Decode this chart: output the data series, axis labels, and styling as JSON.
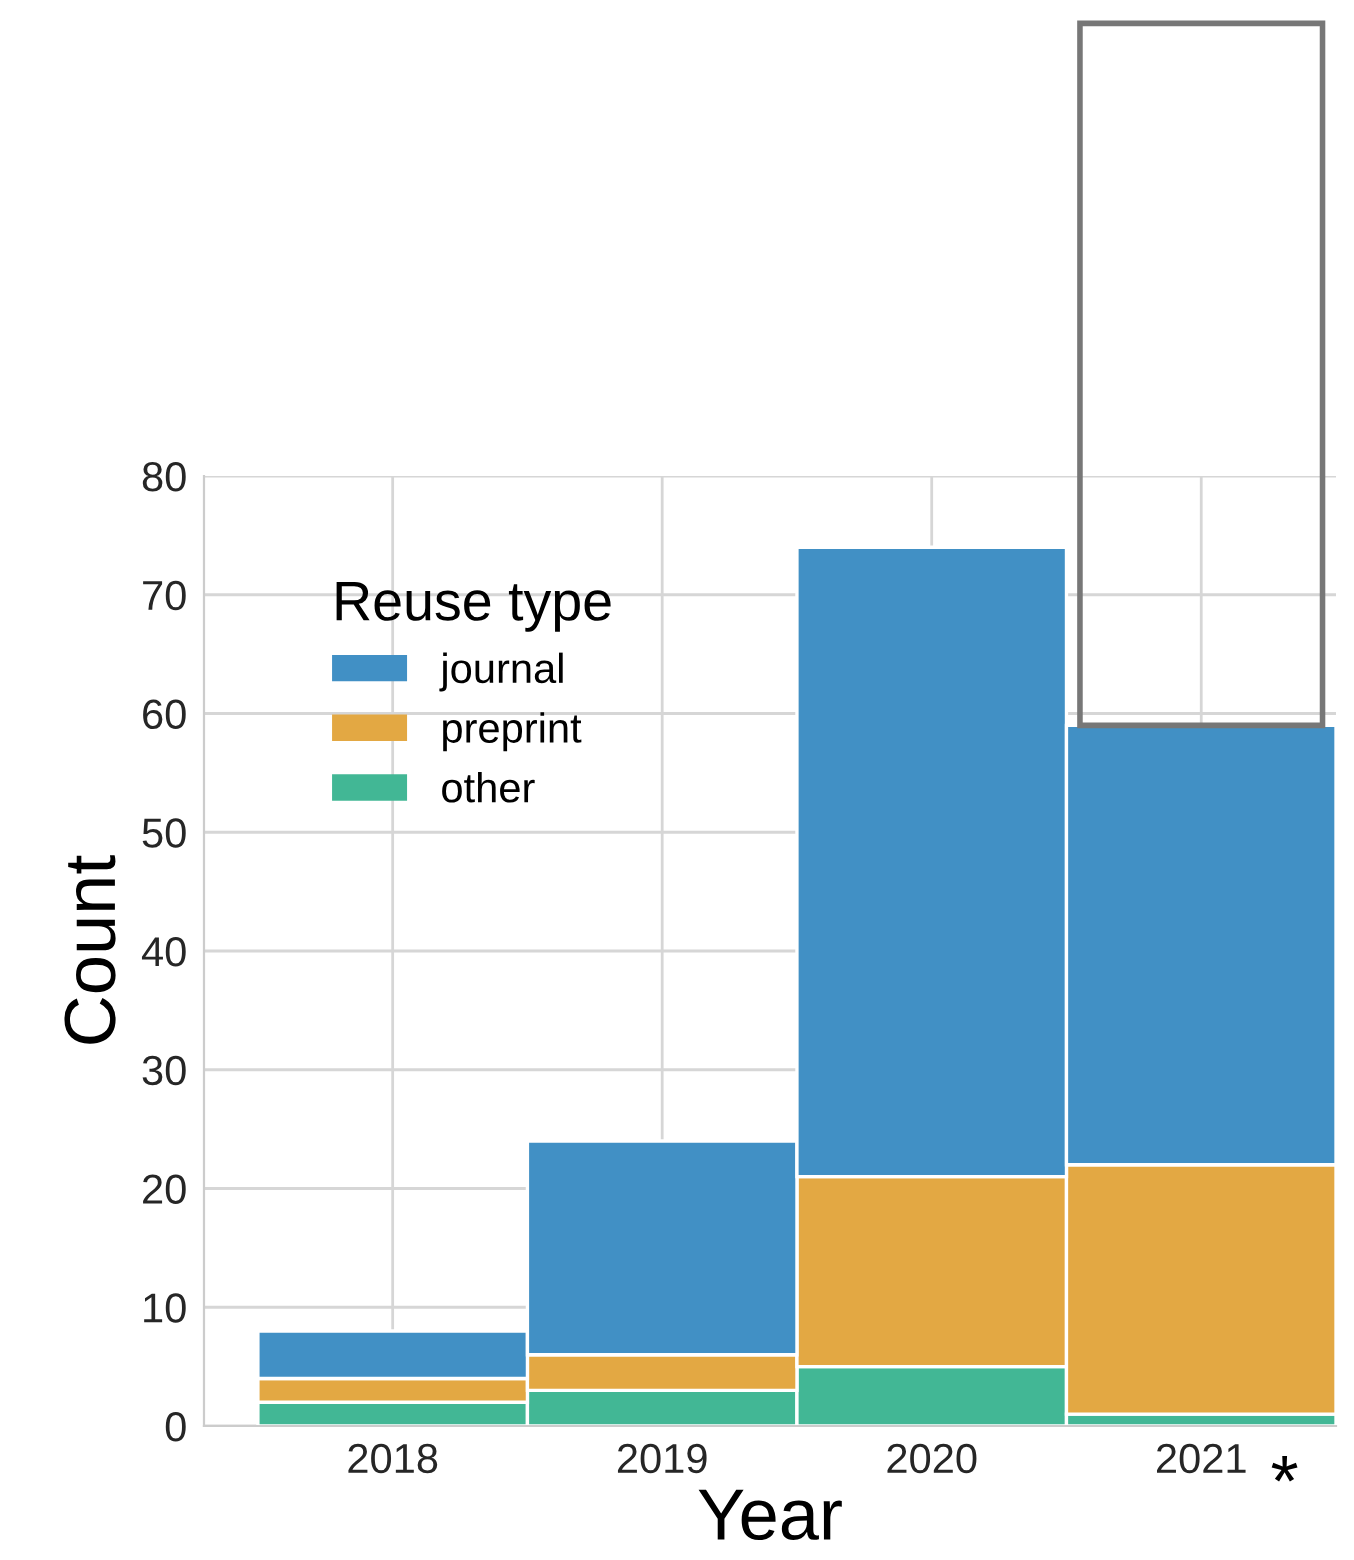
{
  "chart_data": {
    "type": "bar",
    "stacked": true,
    "xlabel": "Year",
    "ylabel": "Count",
    "legend_title": "Reuse type",
    "legend": "top left",
    "grid": true,
    "categories": [
      "2018",
      "2019",
      "2020",
      "2021"
    ],
    "series": [
      {
        "name": "other",
        "color": "#42b795",
        "values": [
          2,
          3,
          5,
          1
        ]
      },
      {
        "name": "preprint",
        "color": "#e3a843",
        "values": [
          2,
          3,
          16,
          21
        ]
      },
      {
        "name": "journal",
        "color": "#4190c5",
        "values": [
          4,
          18,
          53,
          37
        ]
      }
    ],
    "ylim": [
      0,
      80
    ],
    "yticks": [
      0,
      10,
      20,
      30,
      40,
      50,
      60,
      70,
      80
    ],
    "annotations": [
      {
        "text": "*",
        "x": "2021",
        "y": 0
      }
    ]
  }
}
